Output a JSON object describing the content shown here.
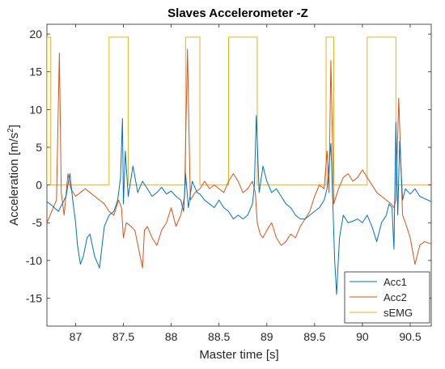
{
  "chart_data": {
    "type": "line",
    "title": "Slaves Accelerometer -Z",
    "xlabel": "Master time [s]",
    "ylabel_main": "Acceleration [m/s",
    "ylabel_sup": "2",
    "ylabel_end": "]",
    "xlim": [
      86.7,
      90.72
    ],
    "ylim": [
      -18.7,
      21.3
    ],
    "xticks": [
      87,
      87.5,
      88,
      88.5,
      89,
      89.5,
      90,
      90.5
    ],
    "xtick_labels": [
      "87",
      "87.5",
      "88",
      "88.5",
      "89",
      "89.5",
      "90",
      "90.5"
    ],
    "yticks": [
      -15,
      -10,
      -5,
      0,
      5,
      10,
      15,
      20
    ],
    "ytick_labels": [
      "-15",
      "-10",
      "-5",
      "0",
      "5",
      "10",
      "15",
      "20"
    ],
    "grid": false,
    "legend_position": "bottom-right",
    "series": [
      {
        "name": "Acc1",
        "color": "#0072BD",
        "x": [
          86.7,
          86.76,
          86.82,
          86.86,
          86.9,
          86.94,
          86.97,
          87.0,
          87.02,
          87.05,
          87.08,
          87.12,
          87.15,
          87.2,
          87.25,
          87.3,
          87.35,
          87.4,
          87.44,
          87.47,
          87.49,
          87.5,
          87.52,
          87.55,
          87.6,
          87.65,
          87.7,
          87.75,
          87.8,
          87.85,
          87.9,
          87.95,
          88.0,
          88.05,
          88.1,
          88.13,
          88.15,
          88.18,
          88.22,
          88.27,
          88.3,
          88.35,
          88.4,
          88.45,
          88.5,
          88.55,
          88.6,
          88.65,
          88.7,
          88.75,
          88.8,
          88.85,
          88.87,
          88.89,
          88.92,
          88.96,
          89.0,
          89.05,
          89.1,
          89.15,
          89.2,
          89.25,
          89.3,
          89.35,
          89.4,
          89.45,
          89.5,
          89.55,
          89.6,
          89.63,
          89.67,
          89.71,
          89.73,
          89.76,
          89.8,
          89.85,
          89.9,
          89.95,
          90.0,
          90.05,
          90.1,
          90.15,
          90.2,
          90.25,
          90.28,
          90.31,
          90.33,
          90.35,
          90.37,
          90.39,
          90.42,
          90.45,
          90.5,
          90.55,
          90.6,
          90.65,
          90.72
        ],
        "y": [
          -2.2,
          -2.8,
          -3.5,
          -2.5,
          -1.5,
          1.5,
          -2.0,
          -5.0,
          -8.0,
          -10.5,
          -9.5,
          -7.0,
          -6.5,
          -9.5,
          -11.0,
          -5.5,
          -4.0,
          -3.5,
          -2.0,
          1.0,
          8.8,
          -2.5,
          4.5,
          -1.5,
          2.5,
          -1.0,
          0.5,
          -0.5,
          -1.5,
          -1.0,
          -0.3,
          -1.2,
          -0.8,
          -1.5,
          -2.0,
          -3.5,
          1.5,
          -3.0,
          0.5,
          -1.0,
          -1.2,
          -2.0,
          -2.5,
          -3.0,
          -2.0,
          -3.0,
          -3.5,
          -4.5,
          -4.0,
          -4.5,
          -4.0,
          -2.5,
          0.0,
          9.2,
          -1.0,
          2.5,
          0.5,
          -1.0,
          -0.5,
          -1.5,
          -2.5,
          -3.0,
          -4.0,
          -4.5,
          -4.5,
          -4.0,
          -3.5,
          -3.0,
          -2.0,
          -0.5,
          5.5,
          -10.0,
          -14.5,
          -7.0,
          -4.0,
          -5.0,
          -4.8,
          -4.5,
          -5.0,
          -4.0,
          -5.5,
          -7.5,
          -5.0,
          -4.0,
          -2.5,
          -3.0,
          -8.5,
          8.3,
          -4.0,
          5.8,
          -2.0,
          -0.5,
          -1.2,
          -0.5,
          -1.5,
          -1.8,
          -2.2
        ]
      },
      {
        "name": "Acc2",
        "color": "#D95319",
        "x": [
          86.7,
          86.75,
          86.8,
          86.83,
          86.85,
          86.88,
          86.92,
          86.95,
          87.0,
          87.05,
          87.1,
          87.15,
          87.2,
          87.25,
          87.3,
          87.35,
          87.4,
          87.45,
          87.48,
          87.5,
          87.53,
          87.58,
          87.62,
          87.66,
          87.7,
          87.72,
          87.75,
          87.8,
          87.85,
          87.9,
          87.95,
          88.0,
          88.05,
          88.1,
          88.14,
          88.17,
          88.2,
          88.25,
          88.3,
          88.35,
          88.4,
          88.45,
          88.5,
          88.55,
          88.6,
          88.65,
          88.7,
          88.75,
          88.8,
          88.85,
          88.88,
          88.9,
          88.93,
          88.96,
          89.0,
          89.05,
          89.1,
          89.15,
          89.2,
          89.25,
          89.3,
          89.35,
          89.4,
          89.45,
          89.5,
          89.55,
          89.6,
          89.63,
          89.65,
          89.67,
          89.7,
          89.75,
          89.8,
          89.85,
          89.9,
          89.95,
          90.0,
          90.05,
          90.1,
          90.15,
          90.2,
          90.25,
          90.3,
          90.33,
          90.35,
          90.38,
          90.42,
          90.45,
          90.5,
          90.55,
          90.6,
          90.65,
          90.72
        ],
        "y": [
          -5.0,
          -3.5,
          -2.0,
          17.5,
          -1.0,
          -4.0,
          1.5,
          -0.5,
          -1.5,
          -1.0,
          -0.5,
          -1.0,
          -1.5,
          -2.0,
          -2.5,
          -3.5,
          -4.0,
          -2.0,
          -3.0,
          -7.0,
          -5.0,
          -5.5,
          -6.0,
          -8.5,
          -11.0,
          -6.0,
          -5.5,
          -7.0,
          -8.0,
          -6.0,
          -5.0,
          -3.0,
          -5.5,
          -4.0,
          -1.5,
          18.0,
          -2.0,
          -1.0,
          -0.5,
          0.5,
          -0.5,
          0.0,
          -0.5,
          -1.0,
          0.5,
          1.5,
          0.5,
          -1.0,
          -0.5,
          0.5,
          -1.0,
          -5.0,
          -6.5,
          -7.0,
          -6.0,
          -5.0,
          -7.0,
          -8.0,
          -7.5,
          -6.5,
          -7.0,
          -5.5,
          -4.5,
          -3.5,
          -1.5,
          0.0,
          -0.5,
          4.5,
          -1.0,
          16.5,
          -2.5,
          -0.5,
          1.0,
          1.5,
          0.5,
          1.0,
          2.0,
          1.0,
          0.0,
          -1.0,
          -1.5,
          -2.0,
          -2.5,
          -3.0,
          -2.0,
          11.5,
          -4.0,
          -5.0,
          -7.0,
          -10.5,
          -8.0,
          -7.5,
          -7.8
        ]
      },
      {
        "name": "sEMG",
        "color": "#EDB120",
        "x": [
          86.7,
          86.7,
          86.74,
          86.74,
          87.35,
          87.35,
          87.55,
          87.55,
          88.15,
          88.15,
          88.3,
          88.3,
          88.6,
          88.6,
          88.9,
          88.9,
          89.62,
          89.62,
          89.7,
          89.7,
          90.05,
          90.05,
          90.35,
          90.35,
          90.72
        ],
        "y": [
          0,
          19.6,
          19.6,
          0,
          0,
          19.6,
          19.6,
          0,
          0,
          19.6,
          19.6,
          0,
          0,
          19.6,
          19.6,
          0,
          0,
          19.6,
          19.6,
          0,
          0,
          19.6,
          19.6,
          0,
          0
        ]
      }
    ]
  }
}
